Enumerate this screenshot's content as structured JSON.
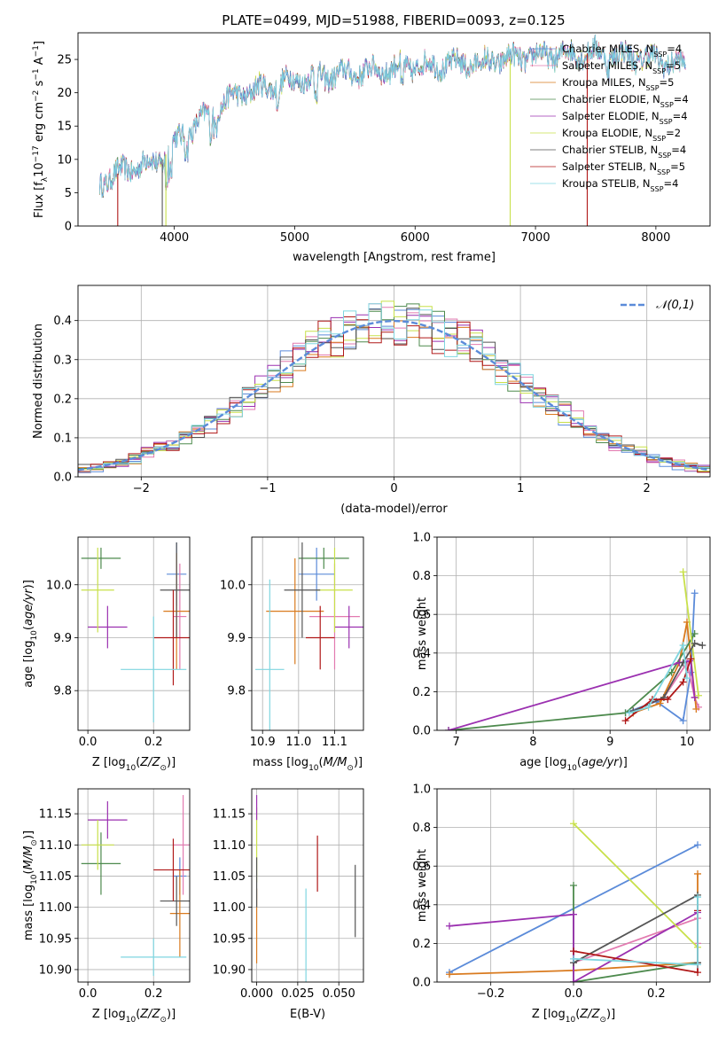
{
  "figure": {
    "title": "PLATE=0499, MJD=51988, FIBERID=0093, z=0.125",
    "colors": {
      "chabrier_miles": "#5b8bd9",
      "salpeter_miles": "#e27ab0",
      "kroupa_miles": "#d97a1e",
      "chabrier_elodie": "#4d8a4d",
      "salpeter_elodie": "#9b30b0",
      "kroupa_elodie": "#c8e04a",
      "chabrier_stelib": "#555555",
      "salpeter_stelib": "#b01818",
      "kroupa_stelib": "#7fd6e0",
      "normal": "#5b8bd9"
    }
  },
  "chart_data": [
    {
      "id": "spectrum",
      "type": "line",
      "xlabel": "wavelength [Angstrom, rest frame]",
      "ylabel": "Flux [f_λ10^-17 erg cm^-2 s^-1 A^-1]",
      "xlim": [
        3200,
        8450
      ],
      "ylim": [
        0,
        29
      ],
      "xticks": [
        4000,
        5000,
        6000,
        7000,
        8000
      ],
      "yticks": [
        0,
        5,
        10,
        15,
        20,
        25
      ],
      "grid": false,
      "legend_position": "top-right",
      "continuum": {
        "x": [
          3380,
          3600,
          3900,
          4000,
          4300,
          4500,
          5000,
          5500,
          6000,
          6500,
          7000,
          7500,
          8000,
          8250
        ],
        "y": [
          6.5,
          8.5,
          10,
          12.5,
          17,
          19.5,
          22,
          23,
          24,
          24.5,
          25.5,
          26,
          25,
          24
        ]
      },
      "series": [
        {
          "name": "Chabrier MILES, N_SSP=4",
          "color_key": "chabrier_miles"
        },
        {
          "name": "Salpeter MILES, N_SSP=5",
          "color_key": "salpeter_miles"
        },
        {
          "name": "Kroupa MILES, N_SSP=5",
          "color_key": "kroupa_miles"
        },
        {
          "name": "Chabrier ELODIE, N_SSP=4",
          "color_key": "chabrier_elodie"
        },
        {
          "name": "Salpeter ELODIE, N_SSP=4",
          "color_key": "salpeter_elodie"
        },
        {
          "name": "Kroupa ELODIE, N_SSP=2",
          "color_key": "kroupa_elodie"
        },
        {
          "name": "Chabrier STELIB, N_SSP=4",
          "color_key": "chabrier_stelib"
        },
        {
          "name": "Salpeter STELIB, N_SSP=5",
          "color_key": "salpeter_stelib"
        },
        {
          "name": "Kroupa STELIB, N_SSP=4",
          "color_key": "kroupa_stelib"
        }
      ],
      "legend": [
        {
          "prefix": "Chabrier MILES, N",
          "sub": "SSP",
          "suffix": "=4",
          "color_key": "chabrier_miles"
        },
        {
          "prefix": "Salpeter MILES, N",
          "sub": "SSP",
          "suffix": "=5",
          "color_key": "salpeter_miles"
        },
        {
          "prefix": "Kroupa MILES, N",
          "sub": "SSP",
          "suffix": "=5",
          "color_key": "kroupa_miles"
        },
        {
          "prefix": "Chabrier ELODIE, N",
          "sub": "SSP",
          "suffix": "=4",
          "color_key": "chabrier_elodie"
        },
        {
          "prefix": "Salpeter ELODIE, N",
          "sub": "SSP",
          "suffix": "=4",
          "color_key": "salpeter_elodie"
        },
        {
          "prefix": "Kroupa ELODIE, N",
          "sub": "SSP",
          "suffix": "=2",
          "color_key": "kroupa_elodie"
        },
        {
          "prefix": "Chabrier STELIB, N",
          "sub": "SSP",
          "suffix": "=4",
          "color_key": "chabrier_stelib"
        },
        {
          "prefix": "Salpeter STELIB, N",
          "sub": "SSP",
          "suffix": "=5",
          "color_key": "salpeter_stelib"
        },
        {
          "prefix": "Kroupa STELIB, N",
          "sub": "SSP",
          "suffix": "=4",
          "color_key": "kroupa_stelib"
        }
      ],
      "drops": [
        {
          "x": 3530,
          "color_key": "salpeter_stelib"
        },
        {
          "x": 3900,
          "color_key": "chabrier_stelib"
        },
        {
          "x": 3930,
          "color_key": "kroupa_elodie"
        },
        {
          "x": 6790,
          "color_key": "kroupa_elodie"
        },
        {
          "x": 7430,
          "color_key": "salpeter_stelib"
        }
      ]
    },
    {
      "id": "residuals",
      "type": "step",
      "xlabel": "(data-model)/error",
      "ylabel": "Normed distribution",
      "xlim": [
        -2.5,
        2.5
      ],
      "ylim": [
        0,
        0.49
      ],
      "xticks": [
        -2,
        -1,
        0,
        1,
        2
      ],
      "yticks": [
        0.0,
        0.1,
        0.2,
        0.3,
        0.4
      ],
      "grid": true,
      "legend_position": "top-right",
      "legend": "𝒩(0,1)",
      "bin_width": 0.1
    },
    {
      "id": "age_vs_Z",
      "type": "errorbar",
      "xlabel": "Z [log10(Z/Z⊙)]",
      "ylabel": "age [log10(age/yr)]",
      "xlim": [
        -0.03,
        0.31
      ],
      "ylim": [
        9.725,
        10.09
      ],
      "xticks": [
        0.0,
        0.2
      ],
      "yticks": [
        9.8,
        9.9,
        10.0
      ],
      "grid": true,
      "points": [
        {
          "color_key": "chabrier_miles",
          "x": 0.27,
          "xerr": 0.03,
          "y": 10.02,
          "yerr": 0.06
        },
        {
          "color_key": "salpeter_miles",
          "x": 0.28,
          "xerr": 0.02,
          "y": 9.94,
          "yerr": 0.1
        },
        {
          "color_key": "kroupa_miles",
          "x": 0.27,
          "xerr": 0.04,
          "y": 9.95,
          "yerr": 0.11
        },
        {
          "color_key": "chabrier_elodie",
          "x": 0.04,
          "xerr": 0.06,
          "y": 10.05,
          "yerr": 0.02
        },
        {
          "color_key": "salpeter_elodie",
          "x": 0.06,
          "xerr": 0.06,
          "y": 9.92,
          "yerr": 0.04
        },
        {
          "color_key": "kroupa_elodie",
          "x": 0.03,
          "xerr": 0.05,
          "y": 9.99,
          "yerr": 0.08
        },
        {
          "color_key": "chabrier_stelib",
          "x": 0.27,
          "xerr": 0.05,
          "y": 9.99,
          "yerr": 0.09
        },
        {
          "color_key": "salpeter_stelib",
          "x": 0.26,
          "xerr": 0.06,
          "y": 9.9,
          "yerr": 0.09
        },
        {
          "color_key": "kroupa_stelib",
          "x": 0.2,
          "xerr": 0.1,
          "y": 9.84,
          "yerr": 0.1
        }
      ]
    },
    {
      "id": "age_vs_mass",
      "type": "errorbar",
      "xlabel": "mass [log10(M/M⊙)]",
      "ylabel": "",
      "xlim": [
        10.87,
        11.18
      ],
      "ylim": [
        9.725,
        10.09
      ],
      "xticks": [
        10.9,
        11.0,
        11.1
      ],
      "yticks": [
        9.8,
        9.9,
        10.0
      ],
      "grid": true,
      "points": [
        {
          "color_key": "chabrier_miles",
          "x": 11.05,
          "xerr": 0.05,
          "y": 10.02,
          "yerr": 0.05
        },
        {
          "color_key": "salpeter_miles",
          "x": 11.1,
          "xerr": 0.07,
          "y": 9.94,
          "yerr": 0.1
        },
        {
          "color_key": "kroupa_miles",
          "x": 10.99,
          "xerr": 0.08,
          "y": 9.95,
          "yerr": 0.1
        },
        {
          "color_key": "chabrier_elodie",
          "x": 11.07,
          "xerr": 0.07,
          "y": 10.05,
          "yerr": 0.02
        },
        {
          "color_key": "salpeter_elodie",
          "x": 11.14,
          "xerr": 0.04,
          "y": 9.92,
          "yerr": 0.04
        },
        {
          "color_key": "kroupa_elodie",
          "x": 11.1,
          "xerr": 0.05,
          "y": 9.99,
          "yerr": 0.08
        },
        {
          "color_key": "chabrier_stelib",
          "x": 11.01,
          "xerr": 0.05,
          "y": 9.99,
          "yerr": 0.09
        },
        {
          "color_key": "salpeter_stelib",
          "x": 11.06,
          "xerr": 0.04,
          "y": 9.9,
          "yerr": 0.06
        },
        {
          "color_key": "kroupa_stelib",
          "x": 10.92,
          "xerr": 0.04,
          "y": 9.84,
          "yerr": 0.17
        }
      ]
    },
    {
      "id": "weight_vs_age",
      "type": "line",
      "xlabel": "age [log10(age/yr)]",
      "ylabel": "mass weight",
      "xlim": [
        6.75,
        10.3
      ],
      "ylim": [
        0,
        1.0
      ],
      "xticks": [
        7,
        8,
        9,
        10
      ],
      "yticks": [
        0.0,
        0.2,
        0.4,
        0.6,
        0.8,
        1.0
      ],
      "grid": true,
      "series": [
        {
          "color_key": "chabrier_miles",
          "points": [
            [
              9.2,
              0.09
            ],
            [
              9.6,
              0.15
            ],
            [
              9.95,
              0.05
            ],
            [
              10.05,
              0.3
            ],
            [
              10.1,
              0.71
            ]
          ]
        },
        {
          "color_key": "salpeter_miles",
          "points": [
            [
              9.3,
              0.1
            ],
            [
              9.7,
              0.17
            ],
            [
              10.0,
              0.35
            ],
            [
              10.1,
              0.17
            ],
            [
              10.15,
              0.12
            ]
          ]
        },
        {
          "color_key": "kroupa_miles",
          "points": [
            [
              9.3,
              0.09
            ],
            [
              9.65,
              0.14
            ],
            [
              9.9,
              0.35
            ],
            [
              10.0,
              0.56
            ],
            [
              10.12,
              0.11
            ]
          ]
        },
        {
          "color_key": "chabrier_elodie",
          "points": [
            [
              6.9,
              0.0
            ],
            [
              9.2,
              0.09
            ],
            [
              9.8,
              0.3
            ],
            [
              10.1,
              0.5
            ]
          ]
        },
        {
          "color_key": "salpeter_elodie",
          "points": [
            [
              6.9,
              0.0
            ],
            [
              9.9,
              0.35
            ],
            [
              10.05,
              0.36
            ],
            [
              10.1,
              0.17
            ]
          ]
        },
        {
          "color_key": "kroupa_elodie",
          "points": [
            [
              9.95,
              0.82
            ],
            [
              10.15,
              0.18
            ]
          ]
        },
        {
          "color_key": "chabrier_stelib",
          "points": [
            [
              9.3,
              0.1
            ],
            [
              9.7,
              0.17
            ],
            [
              9.95,
              0.35
            ],
            [
              10.1,
              0.45
            ],
            [
              10.2,
              0.44
            ]
          ]
        },
        {
          "color_key": "salpeter_stelib",
          "points": [
            [
              9.2,
              0.05
            ],
            [
              9.55,
              0.16
            ],
            [
              9.75,
              0.16
            ],
            [
              9.95,
              0.25
            ],
            [
              10.05,
              0.37
            ]
          ]
        },
        {
          "color_key": "kroupa_stelib",
          "points": [
            [
              9.25,
              0.09
            ],
            [
              9.5,
              0.12
            ],
            [
              9.95,
              0.44
            ],
            [
              10.0,
              0.27
            ]
          ]
        }
      ]
    },
    {
      "id": "mass_vs_Z",
      "type": "errorbar",
      "xlabel": "Z [log10(Z/Z⊙)]",
      "ylabel": "mass [log10(M/M⊙)]",
      "xlim": [
        -0.03,
        0.31
      ],
      "ylim": [
        10.88,
        11.19
      ],
      "xticks": [
        0.0,
        0.2
      ],
      "yticks": [
        10.9,
        10.95,
        11.0,
        11.05,
        11.1,
        11.15
      ],
      "grid": true,
      "points": [
        {
          "color_key": "chabrier_miles",
          "x": 0.28,
          "xerr": 0.02,
          "y": 11.05,
          "yerr": 0.03
        },
        {
          "color_key": "salpeter_miles",
          "x": 0.29,
          "xerr": 0.03,
          "y": 11.1,
          "yerr": 0.08
        },
        {
          "color_key": "kroupa_miles",
          "x": 0.28,
          "xerr": 0.03,
          "y": 10.99,
          "yerr": 0.07
        },
        {
          "color_key": "chabrier_elodie",
          "x": 0.04,
          "xerr": 0.06,
          "y": 11.07,
          "yerr": 0.05
        },
        {
          "color_key": "salpeter_elodie",
          "x": 0.06,
          "xerr": 0.06,
          "y": 11.14,
          "yerr": 0.03
        },
        {
          "color_key": "kroupa_elodie",
          "x": 0.03,
          "xerr": 0.05,
          "y": 11.1,
          "yerr": 0.04
        },
        {
          "color_key": "chabrier_stelib",
          "x": 0.27,
          "xerr": 0.05,
          "y": 11.01,
          "yerr": 0.04
        },
        {
          "color_key": "salpeter_stelib",
          "x": 0.26,
          "xerr": 0.06,
          "y": 11.06,
          "yerr": 0.05
        },
        {
          "color_key": "kroupa_stelib",
          "x": 0.2,
          "xerr": 0.1,
          "y": 10.92,
          "yerr": 0.03
        }
      ]
    },
    {
      "id": "mass_vs_ebv",
      "type": "errorbar",
      "xlabel": "E(B-V)",
      "ylabel": "",
      "xlim": [
        -0.003,
        0.065
      ],
      "ylim": [
        10.88,
        11.19
      ],
      "xticks": [
        0.0,
        0.025,
        0.05
      ],
      "yticks": [
        10.9,
        10.95,
        11.0,
        11.05,
        11.1,
        11.15
      ],
      "grid": true,
      "points": [
        {
          "color_key": "kroupa_elodie",
          "x": 0.0,
          "xerr": 0.0,
          "y": 11.1,
          "yerr": 0.06
        },
        {
          "color_key": "salpeter_elodie",
          "x": 0.0,
          "xerr": 0.0,
          "y": 11.16,
          "yerr": 0.02
        },
        {
          "color_key": "kroupa_miles",
          "x": 0.0,
          "xerr": 0.0,
          "y": 10.97,
          "yerr": 0.06
        },
        {
          "color_key": "chabrier_stelib",
          "x": 0.0,
          "xerr": 0.0,
          "y": 11.04,
          "yerr": 0.04
        },
        {
          "color_key": "kroupa_stelib",
          "x": 0.03,
          "xerr": 0.0,
          "y": 10.94,
          "yerr": 0.09
        },
        {
          "color_key": "salpeter_stelib",
          "x": 0.037,
          "xerr": 0.0,
          "y": 11.07,
          "yerr": 0.045
        },
        {
          "color_key": "chabrier_stelib",
          "x": 0.06,
          "xerr": 0.0,
          "y": 11.01,
          "yerr": 0.058
        }
      ]
    },
    {
      "id": "weight_vs_Z",
      "type": "line",
      "xlabel": "Z [log10(Z/Z⊙)]",
      "ylabel": "mass weight",
      "xlim": [
        -0.33,
        0.33
      ],
      "ylim": [
        0,
        1.0
      ],
      "xticks": [
        -0.2,
        0.0,
        0.2
      ],
      "yticks": [
        0.0,
        0.2,
        0.4,
        0.6,
        0.8,
        1.0
      ],
      "grid": true,
      "series": [
        {
          "color_key": "chabrier_miles",
          "points": [
            [
              -0.3,
              0.05
            ],
            [
              0.3,
              0.71
            ]
          ]
        },
        {
          "color_key": "salpeter_miles",
          "points": [
            [
              0.0,
              0.1
            ],
            [
              0.3,
              0.33
            ],
            [
              0.3,
              0.2
            ],
            [
              0.3,
              0.09
            ]
          ]
        },
        {
          "color_key": "kroupa_miles",
          "points": [
            [
              -0.3,
              0.04
            ],
            [
              0.0,
              0.06
            ],
            [
              0.3,
              0.1
            ],
            [
              0.3,
              0.56
            ]
          ]
        },
        {
          "color_key": "chabrier_elodie",
          "points": [
            [
              0.0,
              0.0
            ],
            [
              0.0,
              0.5
            ],
            [
              0.0,
              0.0
            ],
            [
              0.3,
              0.1
            ]
          ]
        },
        {
          "color_key": "salpeter_elodie",
          "points": [
            [
              -0.3,
              0.29
            ],
            [
              0.0,
              0.35
            ],
            [
              0.0,
              0.0
            ],
            [
              0.3,
              0.36
            ]
          ]
        },
        {
          "color_key": "kroupa_elodie",
          "points": [
            [
              0.0,
              0.82
            ],
            [
              0.3,
              0.18
            ]
          ]
        },
        {
          "color_key": "chabrier_stelib",
          "points": [
            [
              0.0,
              0.1
            ],
            [
              0.3,
              0.45
            ],
            [
              0.3,
              0.1
            ]
          ]
        },
        {
          "color_key": "salpeter_stelib",
          "points": [
            [
              0.0,
              0.16
            ],
            [
              0.3,
              0.05
            ],
            [
              0.3,
              0.37
            ]
          ]
        },
        {
          "color_key": "kroupa_stelib",
          "points": [
            [
              0.0,
              0.12
            ],
            [
              0.3,
              0.09
            ],
            [
              0.3,
              0.44
            ]
          ]
        }
      ]
    }
  ]
}
